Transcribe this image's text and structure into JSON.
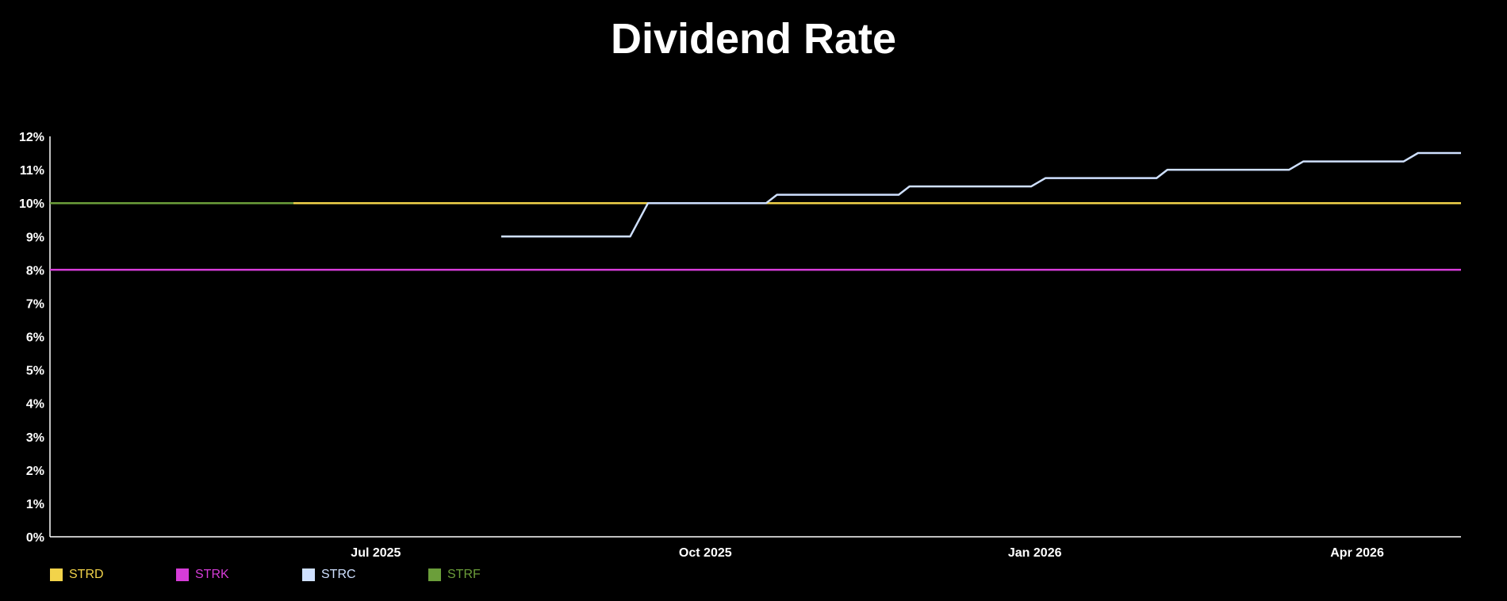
{
  "chart_data": {
    "type": "line",
    "title": "Dividend Rate",
    "xlabel": "",
    "ylabel": "",
    "ylim": [
      0,
      12
    ],
    "xlim": [
      "2025-04-01",
      "2026-04-30"
    ],
    "y_ticks": [
      "0%",
      "1%",
      "2%",
      "3%",
      "4%",
      "5%",
      "6%",
      "7%",
      "8%",
      "9%",
      "10%",
      "11%",
      "12%"
    ],
    "x_ticks": [
      {
        "label": "Jul 2025",
        "date": "2025-07-01"
      },
      {
        "label": "Oct 2025",
        "date": "2025-10-01"
      },
      {
        "label": "Jan 2026",
        "date": "2026-01-01"
      },
      {
        "label": "Apr 2026",
        "date": "2026-04-01"
      }
    ],
    "grid": false,
    "legend_position": "bottom-left",
    "series": [
      {
        "name": "STRF",
        "color": "#6B9E3A",
        "points": [
          {
            "x": "2025-04-01",
            "y": 10
          },
          {
            "x": "2025-06-08",
            "y": 10
          }
        ]
      },
      {
        "name": "STRD",
        "color": "#F2D34A",
        "points": [
          {
            "x": "2025-06-08",
            "y": 10
          },
          {
            "x": "2026-04-30",
            "y": 10
          }
        ]
      },
      {
        "name": "STRK",
        "color": "#D63CD8",
        "points": [
          {
            "x": "2025-04-01",
            "y": 8
          },
          {
            "x": "2026-04-30",
            "y": 8
          }
        ]
      },
      {
        "name": "STRC",
        "color": "#CFE0FF",
        "points": [
          {
            "x": "2025-08-05",
            "y": 9
          },
          {
            "x": "2025-09-10",
            "y": 9
          },
          {
            "x": "2025-09-15",
            "y": 10
          },
          {
            "x": "2025-09-28",
            "y": 10
          },
          {
            "x": "2025-10-18",
            "y": 10
          },
          {
            "x": "2025-10-21",
            "y": 10.25
          },
          {
            "x": "2025-11-24",
            "y": 10.25
          },
          {
            "x": "2025-11-27",
            "y": 10.5
          },
          {
            "x": "2025-12-31",
            "y": 10.5
          },
          {
            "x": "2026-01-04",
            "y": 10.75
          },
          {
            "x": "2026-02-04",
            "y": 10.75
          },
          {
            "x": "2026-02-07",
            "y": 11
          },
          {
            "x": "2026-03-13",
            "y": 11
          },
          {
            "x": "2026-03-17",
            "y": 11.25
          },
          {
            "x": "2026-04-14",
            "y": 11.25
          },
          {
            "x": "2026-04-18",
            "y": 11.5
          },
          {
            "x": "2026-04-30",
            "y": 11.5
          }
        ]
      }
    ],
    "legend": [
      {
        "name": "STRD",
        "color": "#F2D34A"
      },
      {
        "name": "STRK",
        "color": "#D63CD8"
      },
      {
        "name": "STRC",
        "color": "#CFE0FF"
      },
      {
        "name": "STRF",
        "color": "#6B9E3A"
      }
    ]
  }
}
